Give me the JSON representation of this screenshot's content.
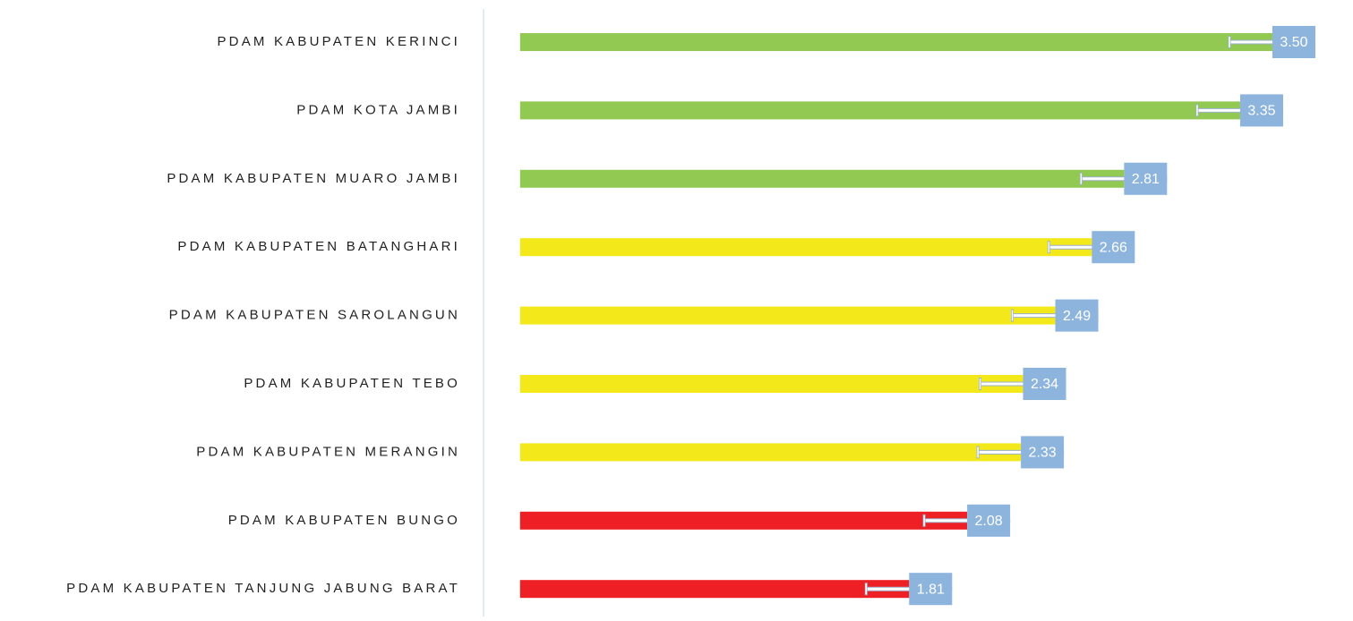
{
  "chart_data": {
    "type": "barh",
    "categories": [
      "PDAM KABUPATEN KERINCI",
      "PDAM KOTA JAMBI",
      "PDAM KABUPATEN MUARO JAMBI",
      "PDAM KABUPATEN BATANGHARI",
      "PDAM KABUPATEN SAROLANGUN",
      "PDAM KABUPATEN TEBO",
      "PDAM KABUPATEN MERANGIN",
      "PDAM KABUPATEN BUNGO",
      "PDAM KABUPATEN TANJUNG JABUNG BARAT"
    ],
    "values": [
      3.5,
      3.35,
      2.81,
      2.66,
      2.49,
      2.34,
      2.33,
      2.08,
      1.81
    ],
    "value_labels": [
      "3.50",
      "3.35",
      "2.81",
      "2.66",
      "2.49",
      "2.34",
      "2.33",
      "2.08",
      "1.81"
    ],
    "errors": [
      0.2,
      0.2,
      0.2,
      0.2,
      0.2,
      0.2,
      0.2,
      0.2,
      0.2
    ],
    "colors": [
      "#92c953",
      "#92c953",
      "#92c953",
      "#f2e81a",
      "#f2e81a",
      "#f2e81a",
      "#f2e81a",
      "#ee2026",
      "#ee2026"
    ],
    "xlim": [
      -0.17,
      3.9
    ]
  }
}
